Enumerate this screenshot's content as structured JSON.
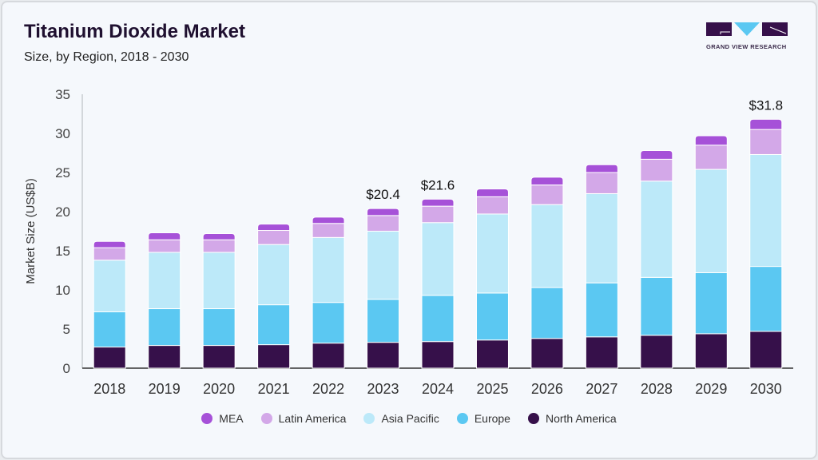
{
  "header": {
    "title": "Titanium Dioxide Market",
    "subtitle": "Size, by Region, 2018 - 2030"
  },
  "logo": {
    "text": "GRAND VIEW RESEARCH"
  },
  "chart_data": {
    "type": "bar",
    "stacked": true,
    "title": "Titanium Dioxide Market",
    "subtitle": "Size, by Region, 2018 - 2030",
    "xlabel": "",
    "ylabel": "Market Size (US$B)",
    "ylim": [
      0,
      35
    ],
    "yticks": [
      0,
      5,
      10,
      15,
      20,
      25,
      30,
      35
    ],
    "grid": false,
    "legend_position": "bottom",
    "categories": [
      "2018",
      "2019",
      "2020",
      "2021",
      "2022",
      "2023",
      "2024",
      "2025",
      "2026",
      "2027",
      "2028",
      "2029",
      "2030"
    ],
    "series": [
      {
        "name": "North America",
        "color": "#36104a",
        "values": [
          2.7,
          2.9,
          2.9,
          3.0,
          3.2,
          3.3,
          3.4,
          3.6,
          3.8,
          4.0,
          4.2,
          4.4,
          4.7
        ]
      },
      {
        "name": "Europe",
        "color": "#5bc8f2",
        "values": [
          4.5,
          4.7,
          4.7,
          5.1,
          5.2,
          5.5,
          5.9,
          6.0,
          6.5,
          6.9,
          7.4,
          7.8,
          8.3
        ]
      },
      {
        "name": "Asia Pacific",
        "color": "#bce9f9",
        "values": [
          6.6,
          7.2,
          7.2,
          7.7,
          8.3,
          8.7,
          9.3,
          10.1,
          10.6,
          11.4,
          12.3,
          13.2,
          14.3
        ]
      },
      {
        "name": "Latin America",
        "color": "#d3a8e8",
        "values": [
          1.6,
          1.6,
          1.6,
          1.8,
          1.8,
          2.0,
          2.1,
          2.2,
          2.5,
          2.7,
          2.8,
          3.1,
          3.2
        ]
      },
      {
        "name": "MEA",
        "color": "#a651d8",
        "values": [
          0.8,
          0.9,
          0.8,
          0.8,
          0.8,
          0.9,
          0.9,
          1.0,
          1.0,
          1.0,
          1.1,
          1.2,
          1.3
        ]
      }
    ],
    "annotations": [
      {
        "category": "2023",
        "label": "$20.4"
      },
      {
        "category": "2024",
        "label": "$21.6"
      },
      {
        "category": "2030",
        "label": "$31.8"
      }
    ],
    "legend_order": [
      "MEA",
      "Latin America",
      "Asia Pacific",
      "Europe",
      "North America"
    ]
  }
}
